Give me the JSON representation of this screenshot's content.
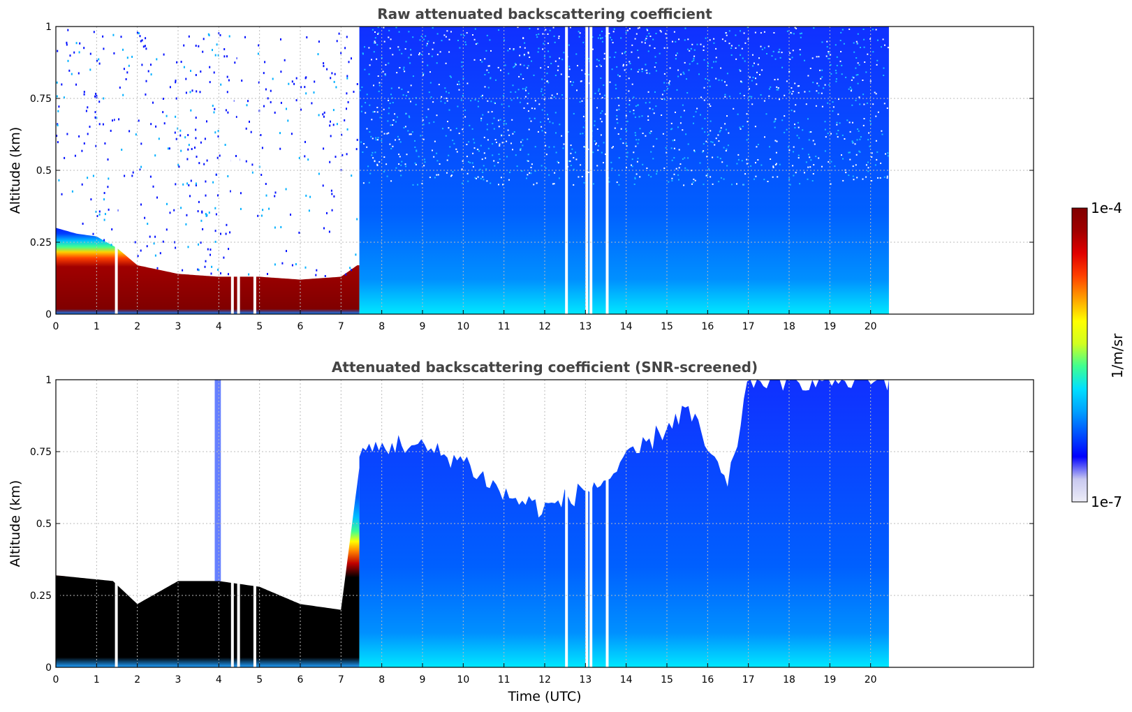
{
  "chart_data": [
    {
      "type": "heatmap",
      "title": "Raw attenuated backscattering coefficient",
      "xlabel": "",
      "ylabel": "Altitude (km)",
      "xlim": [
        0,
        24
      ],
      "ylim": [
        0,
        1
      ],
      "x_ticks": [
        0,
        1,
        2,
        3,
        4,
        5,
        6,
        7,
        8,
        9,
        10,
        11,
        12,
        13,
        14,
        15,
        16,
        17,
        18,
        19,
        20
      ],
      "y_ticks": [
        0,
        0.25,
        0.5,
        0.75,
        1
      ],
      "y_tick_labels": [
        "0",
        "0.25",
        "0.5",
        "0.75",
        "1"
      ],
      "grid": true,
      "data_extent_hours": [
        0,
        20.45
      ],
      "color_scale": "log",
      "colorbar_range": [
        1e-07,
        0.0001
      ],
      "boundary_layer_top_km": [
        [
          0,
          0.3
        ],
        [
          0.5,
          0.28
        ],
        [
          1.0,
          0.27
        ],
        [
          1.5,
          0.23
        ],
        [
          2.0,
          0.17
        ],
        [
          3.0,
          0.14
        ],
        [
          4.0,
          0.13
        ],
        [
          5.0,
          0.13
        ],
        [
          6.0,
          0.12
        ],
        [
          7.0,
          0.13
        ],
        [
          7.4,
          0.17
        ]
      ],
      "data_gaps_hours": [
        1.45,
        4.3,
        4.45,
        4.85,
        12.5,
        13.0,
        13.1,
        13.5
      ]
    },
    {
      "type": "heatmap",
      "title": "Attenuated backscattering coefficient (SNR-screened)",
      "xlabel": "Time (UTC)",
      "ylabel": "Altitude (km)",
      "xlim": [
        0,
        24
      ],
      "ylim": [
        0,
        1
      ],
      "x_ticks": [
        0,
        1,
        2,
        3,
        4,
        5,
        6,
        7,
        8,
        9,
        10,
        11,
        12,
        13,
        14,
        15,
        16,
        17,
        18,
        19,
        20
      ],
      "y_ticks": [
        0,
        0.25,
        0.5,
        0.75,
        1
      ],
      "y_tick_labels": [
        "0",
        "0.25",
        "0.5",
        "0.75",
        "1"
      ],
      "grid": true,
      "data_extent_hours": [
        0,
        20.45
      ],
      "color_scale": "log",
      "colorbar_range": [
        1e-07,
        0.0001
      ],
      "valid_data_top_km": [
        [
          0,
          0.32
        ],
        [
          1.4,
          0.3
        ],
        [
          2.0,
          0.22
        ],
        [
          3.0,
          0.3
        ],
        [
          4.0,
          0.3
        ],
        [
          5.0,
          0.28
        ],
        [
          6.0,
          0.22
        ],
        [
          7.0,
          0.2
        ],
        [
          7.5,
          0.75
        ],
        [
          8.5,
          0.78
        ],
        [
          10.0,
          0.72
        ],
        [
          11.0,
          0.6
        ],
        [
          12.0,
          0.55
        ],
        [
          13.5,
          0.65
        ],
        [
          15.5,
          0.9
        ],
        [
          16.5,
          0.62
        ],
        [
          17.0,
          1.0
        ],
        [
          20.45,
          1.0
        ]
      ],
      "data_gaps_hours": [
        1.45,
        4.3,
        4.45,
        4.85,
        12.5,
        13.0,
        13.1,
        13.5
      ]
    }
  ],
  "colorbar": {
    "label": "1/m/sr",
    "max_label": "1e-4",
    "min_label": "1e-7",
    "colormap": [
      "#ededf7",
      "#c8c8f0",
      "#0000ff",
      "#0050ff",
      "#00a0ff",
      "#00e0ff",
      "#40ff90",
      "#d0ff20",
      "#ffff00",
      "#ffa000",
      "#ff4000",
      "#e00000",
      "#a00000",
      "#800000"
    ]
  },
  "colors": {
    "saturated_screened": "#000000",
    "background": "#ffffff"
  }
}
